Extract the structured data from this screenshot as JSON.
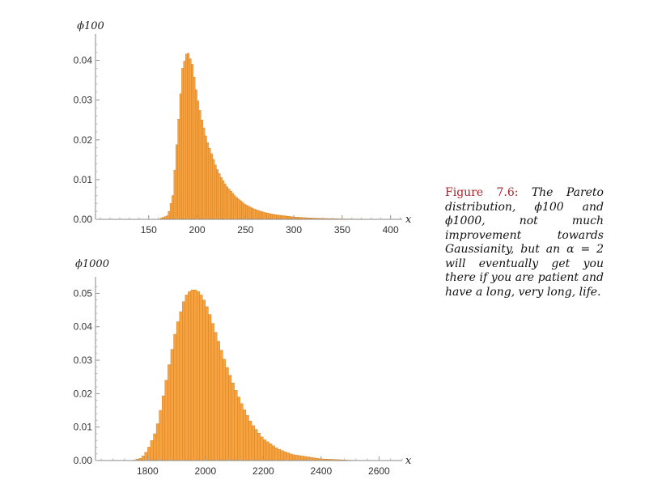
{
  "chart_data": [
    {
      "type": "bar",
      "ylabel": "ϕ100",
      "xlabel": "x",
      "xlim": [
        95,
        412
      ],
      "ylim": [
        0,
        0.045
      ],
      "xticks": [
        150,
        200,
        250,
        300,
        350,
        400
      ],
      "yticks": [
        0.0,
        0.01,
        0.02,
        0.03,
        0.04
      ],
      "ytick_labels": [
        "0.00",
        "0.01",
        "0.02",
        "0.03",
        "0.04"
      ],
      "bar_color": "#f7a23e",
      "bar_edge": "#c97a1f",
      "bin_width": 2,
      "series": [
        {
          "x": [
            160,
            170,
            175,
            180,
            185,
            190,
            195,
            200,
            205,
            210,
            215,
            220,
            225,
            230,
            240,
            250,
            260,
            270,
            280,
            300,
            320,
            350,
            380,
            410
          ],
          "values": [
            0.0,
            0.001,
            0.006,
            0.022,
            0.038,
            0.0425,
            0.039,
            0.031,
            0.025,
            0.02,
            0.0165,
            0.013,
            0.0105,
            0.0085,
            0.0057,
            0.0037,
            0.0025,
            0.0017,
            0.0012,
            0.0006,
            0.0003,
            0.0001,
            5e-05,
            0.0
          ]
        }
      ]
    },
    {
      "type": "bar",
      "ylabel": "ϕ1000",
      "xlabel": "x",
      "xlim": [
        1620,
        2680
      ],
      "ylim": [
        0,
        0.053
      ],
      "xticks": [
        1800,
        2000,
        2200,
        2400,
        2600
      ],
      "yticks": [
        0.0,
        0.01,
        0.02,
        0.03,
        0.04,
        0.05
      ],
      "ytick_labels": [
        "0.00",
        "0.01",
        "0.02",
        "0.03",
        "0.04",
        "0.05"
      ],
      "bar_color": "#f7a23e",
      "bar_edge": "#c97a1f",
      "bin_width": 10,
      "series": [
        {
          "x": [
            1750,
            1780,
            1800,
            1830,
            1850,
            1880,
            1900,
            1930,
            1950,
            1970,
            1990,
            2010,
            2040,
            2070,
            2100,
            2130,
            2160,
            2200,
            2250,
            2300,
            2400,
            2500,
            2600
          ],
          "values": [
            0.0,
            0.0008,
            0.003,
            0.009,
            0.017,
            0.031,
            0.04,
            0.049,
            0.051,
            0.051,
            0.049,
            0.045,
            0.037,
            0.029,
            0.022,
            0.016,
            0.011,
            0.0065,
            0.0035,
            0.0018,
            0.0005,
            0.0001,
            0.0
          ]
        }
      ]
    }
  ],
  "caption": {
    "label": "Figure 7.6:",
    "text": " The Pareto distribution, ϕ100 and ϕ1000, not much improvement towards Gaussianity, but an α = 2 will eventually get you there if you are patient and have a long, very long, life."
  }
}
